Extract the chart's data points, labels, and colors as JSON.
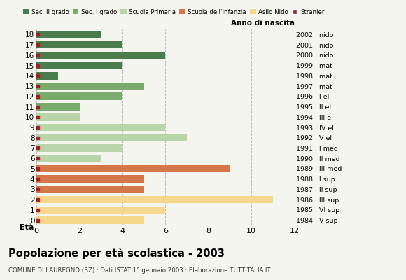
{
  "ages": [
    18,
    17,
    16,
    15,
    14,
    13,
    12,
    11,
    10,
    9,
    8,
    7,
    6,
    5,
    4,
    3,
    2,
    1,
    0
  ],
  "right_labels": [
    "1984 · V sup",
    "1985 · VI sup",
    "1986 · III sup",
    "1987 · II sup",
    "1988 · I sup",
    "1989 · III med",
    "1990 · II med",
    "1991 · I med",
    "1992 · V el",
    "1993 · IV el",
    "1994 · III el",
    "1995 · II el",
    "1996 · I el",
    "1997 · mat",
    "1998 · mat",
    "1999 · mat",
    "2000 · nido",
    "2001 · nido",
    "2002 · nido"
  ],
  "values": [
    3,
    4,
    6,
    4,
    1,
    5,
    4,
    2,
    2,
    6,
    7,
    4,
    3,
    9,
    5,
    5,
    11,
    6,
    5
  ],
  "bar_colors": [
    "#4a7c4e",
    "#4a7c4e",
    "#4a7c4e",
    "#4a7c4e",
    "#4a7c4e",
    "#7aaa6e",
    "#7aaa6e",
    "#7aaa6e",
    "#b8d4a8",
    "#b8d4a8",
    "#b8d4a8",
    "#b8d4a8",
    "#b8d4a8",
    "#d4784a",
    "#d4784a",
    "#d4784a",
    "#f5d78e",
    "#f5d78e",
    "#f5d78e"
  ],
  "stranieri_marker_color": "#a02020",
  "title": "Popolazione per età scolastica - 2003",
  "subtitle": "COMUNE DI LAUREGNO (BZ) · Dati ISTAT 1° gennaio 2003 · Elaborazione TUTTITALIA.IT",
  "xlabel_left": "Età",
  "xlabel_right": "Anno di nascita",
  "xlim": [
    0,
    12
  ],
  "xticks": [
    0,
    2,
    4,
    6,
    8,
    10,
    12
  ],
  "legend_labels": [
    "Sec. II grado",
    "Sec. I grado",
    "Scuola Primaria",
    "Scuola dell'Infanzia",
    "Asilo Nido",
    "Stranieri"
  ],
  "legend_colors": [
    "#4a7c4e",
    "#7aaa6e",
    "#b8d4a8",
    "#d4784a",
    "#f5d78e",
    "#a02020"
  ],
  "background_color": "#f5f5ef",
  "grid_color": "#bbbbbb"
}
